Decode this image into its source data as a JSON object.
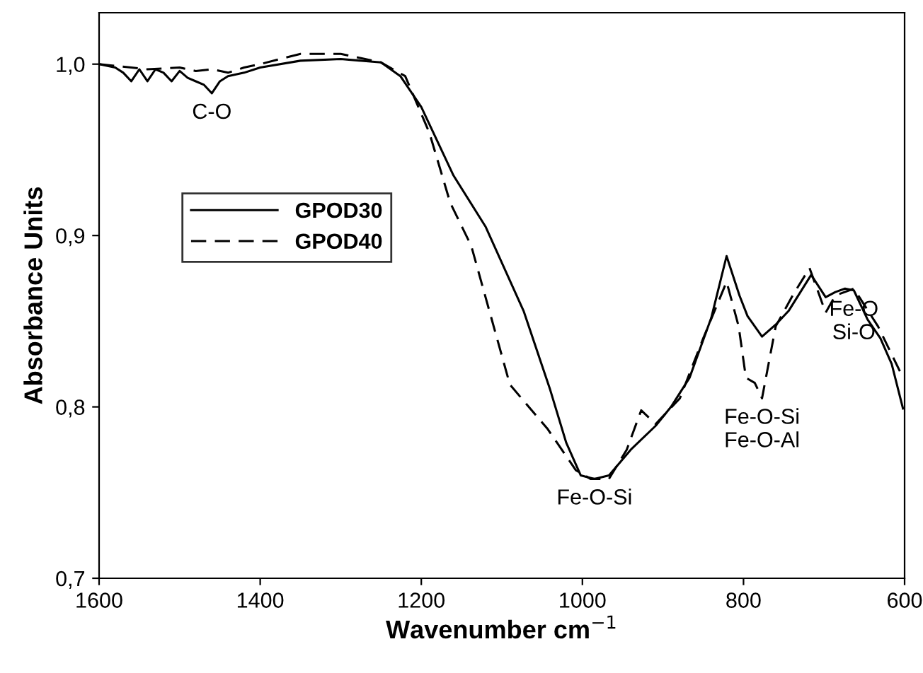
{
  "chart_data": {
    "type": "line",
    "xlabel": "Wavenumber cm$^{−1}$",
    "ylabel": "Absorbance Units",
    "xlim": [
      1600,
      600
    ],
    "xticks": [
      1600,
      1400,
      1200,
      1000,
      800,
      600
    ],
    "ylim": [
      0.7,
      1.03
    ],
    "yticks": [
      {
        "value": 0.7,
        "label": "0,7"
      },
      {
        "value": 0.8,
        "label": "0,8"
      },
      {
        "value": 0.9,
        "label": "0,9"
      },
      {
        "value": 1.0,
        "label": "1,0"
      }
    ],
    "legend": "center left",
    "grid": false,
    "series": [
      {
        "name": "GPOD30",
        "color": "#000000",
        "line_style": "solid",
        "x": [
          1600,
          1580,
          1570,
          1560,
          1550,
          1540,
          1530,
          1520,
          1510,
          1500,
          1490,
          1480,
          1470,
          1460,
          1450,
          1440,
          1420,
          1400,
          1350,
          1300,
          1250,
          1226,
          1200,
          1160,
          1120,
          1073,
          1040,
          1020,
          1002,
          985,
          967,
          940,
          909,
          890,
          867,
          840,
          821,
          805,
          795,
          777,
          760,
          744,
          716,
          698,
          686,
          674,
          663,
          646,
          630,
          616,
          602
        ],
        "values": [
          1.0,
          0.998,
          0.995,
          0.99,
          0.997,
          0.99,
          0.997,
          0.995,
          0.99,
          0.996,
          0.992,
          0.99,
          0.988,
          0.983,
          0.99,
          0.993,
          0.995,
          0.998,
          1.002,
          1.003,
          1.001,
          0.993,
          0.975,
          0.935,
          0.905,
          0.856,
          0.81,
          0.779,
          0.76,
          0.758,
          0.76,
          0.775,
          0.789,
          0.8,
          0.817,
          0.852,
          0.888,
          0.865,
          0.853,
          0.841,
          0.848,
          0.856,
          0.877,
          0.864,
          0.867,
          0.869,
          0.868,
          0.851,
          0.84,
          0.825,
          0.799
        ]
      },
      {
        "name": "GPOD40",
        "color": "#000000",
        "line_style": "dashed",
        "x": [
          1600,
          1560,
          1540,
          1500,
          1480,
          1460,
          1440,
          1420,
          1400,
          1350,
          1300,
          1250,
          1220,
          1190,
          1164,
          1138,
          1090,
          1043,
          1008,
          990,
          967,
          945,
          927,
          909,
          879,
          850,
          821,
          806,
          797,
          786,
          777,
          760,
          739,
          718,
          698,
          686,
          663,
          633,
          604
        ],
        "values": [
          1.0,
          0.998,
          0.997,
          0.998,
          0.996,
          0.997,
          0.995,
          0.998,
          1.0,
          1.006,
          1.006,
          1.001,
          0.993,
          0.96,
          0.919,
          0.894,
          0.813,
          0.787,
          0.763,
          0.758,
          0.758,
          0.775,
          0.798,
          0.79,
          0.805,
          0.84,
          0.873,
          0.847,
          0.817,
          0.814,
          0.805,
          0.847,
          0.865,
          0.881,
          0.855,
          0.865,
          0.869,
          0.847,
          0.819
        ]
      }
    ],
    "annotations": [
      {
        "text": "C-O",
        "x": 1460,
        "y": 0.983
      },
      {
        "text": "Fe-O-Si",
        "x": 985,
        "y": 0.758
      },
      {
        "text": "Fe-O-Si\nFe-O-Al",
        "x": 777,
        "y": 0.805
      },
      {
        "text": "Fe-O\nSi-O",
        "x": 663,
        "y": 0.868
      }
    ]
  }
}
